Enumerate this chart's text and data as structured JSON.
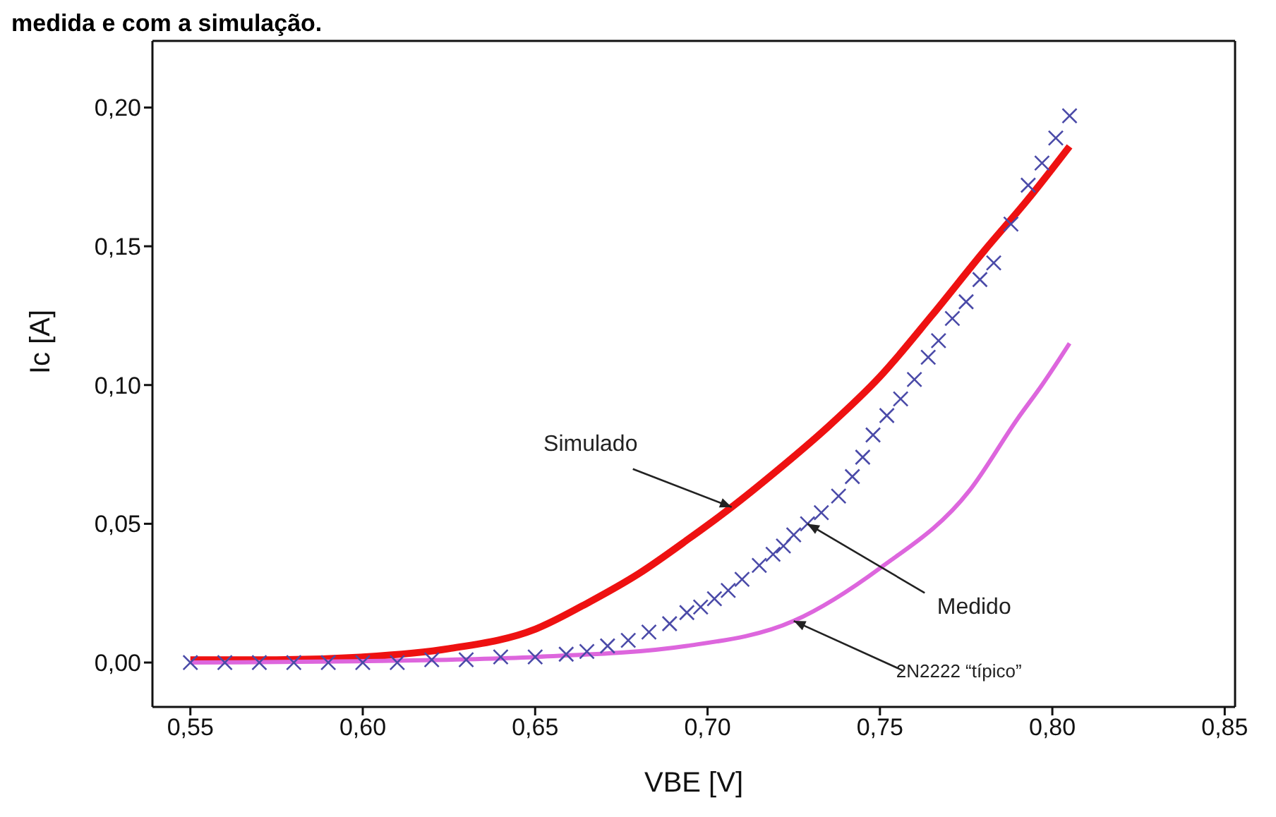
{
  "chart_data": {
    "type": "line",
    "title": "medida e com a simulação.",
    "xlabel": "VBE [V]",
    "ylabel": "Ic [A]",
    "xlim": [
      0.539,
      0.853
    ],
    "xticks": [
      {
        "value": 0.55,
        "label": "0,55"
      },
      {
        "value": 0.6,
        "label": "0,60"
      },
      {
        "value": 0.65,
        "label": "0,65"
      },
      {
        "value": 0.7,
        "label": "0,70"
      },
      {
        "value": 0.75,
        "label": "0,75"
      },
      {
        "value": 0.8,
        "label": "0,80"
      },
      {
        "value": 0.85,
        "label": "0,85"
      }
    ],
    "ylim": [
      -0.016,
      0.224
    ],
    "yticks": [
      {
        "value": 0,
        "label": "0,00"
      },
      {
        "value": 0.05,
        "label": "0,05"
      },
      {
        "value": 0.1,
        "label": "0,10"
      },
      {
        "value": 0.15,
        "label": "0,15"
      },
      {
        "value": 0.2,
        "label": "0,20"
      }
    ],
    "grid": false,
    "series": [
      {
        "color": "#ee1111",
        "x": [
          0.55,
          0.575,
          0.6,
          0.625,
          0.65,
          0.666,
          0.68,
          0.695,
          0.707,
          0.72,
          0.735,
          0.75,
          0.765,
          0.78,
          0.793,
          0.805
        ],
        "values": [
          0.001,
          0.001,
          0.002,
          0.005,
          0.012,
          0.022,
          0.032,
          0.045,
          0.056,
          0.069,
          0.085,
          0.103,
          0.125,
          0.148,
          0.167,
          0.186
        ]
      },
      {
        "type": "scatter",
        "marker": "cross",
        "color": "#4a4aa8",
        "x": [
          0.55,
          0.56,
          0.57,
          0.58,
          0.59,
          0.6,
          0.61,
          0.62,
          0.63,
          0.64,
          0.65,
          0.659,
          0.665,
          0.671,
          0.677,
          0.683,
          0.689,
          0.694,
          0.698,
          0.702,
          0.706,
          0.71,
          0.715,
          0.719,
          0.722,
          0.725,
          0.729,
          0.733,
          0.738,
          0.742,
          0.745,
          0.748,
          0.752,
          0.756,
          0.76,
          0.764,
          0.767,
          0.771,
          0.775,
          0.779,
          0.783,
          0.788,
          0.793,
          0.797,
          0.801,
          0.805
        ],
        "values": [
          0,
          0,
          0,
          0,
          0,
          0,
          0,
          0.001,
          0.001,
          0.002,
          0.002,
          0.003,
          0.004,
          0.006,
          0.008,
          0.011,
          0.014,
          0.018,
          0.02,
          0.023,
          0.026,
          0.03,
          0.035,
          0.039,
          0.042,
          0.046,
          0.05,
          0.054,
          0.06,
          0.067,
          0.074,
          0.082,
          0.089,
          0.095,
          0.102,
          0.11,
          0.116,
          0.124,
          0.13,
          0.138,
          0.144,
          0.158,
          0.172,
          0.18,
          0.189,
          0.197
        ]
      },
      {
        "color": "#dd66dd",
        "x": [
          0.55,
          0.6,
          0.65,
          0.694,
          0.725,
          0.75,
          0.776,
          0.79,
          0.797,
          0.805
        ],
        "values": [
          0,
          0.0005,
          0.002,
          0.006,
          0.015,
          0.034,
          0.062,
          0.088,
          0.1,
          0.115
        ]
      }
    ],
    "annotations": [
      {
        "text": "Simulado",
        "x": 0.707,
        "y": 0.056
      },
      {
        "text": "Medido",
        "x": 0.729,
        "y": 0.05
      },
      {
        "text": "2N2222 “típico”",
        "x": 0.725,
        "y": 0.015
      }
    ]
  }
}
